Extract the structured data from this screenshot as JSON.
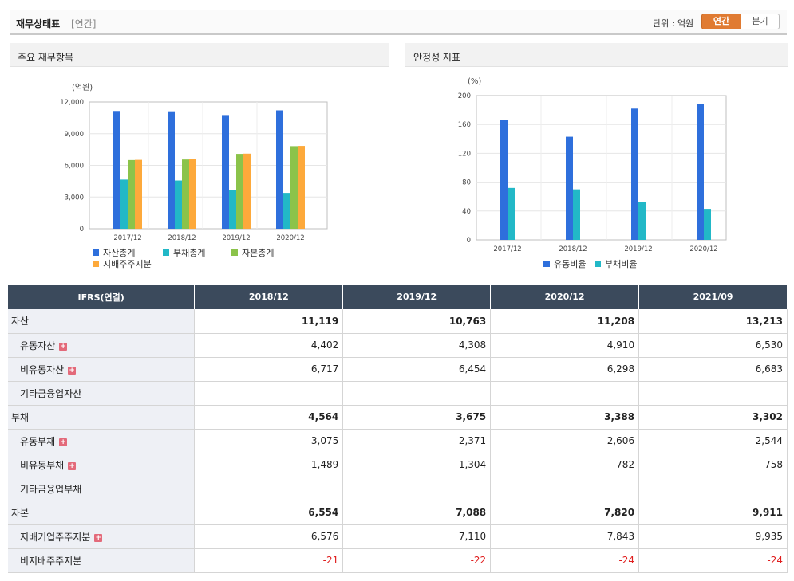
{
  "header": {
    "title": "재무상태표",
    "sub": "[연간]",
    "unit": "단위 : 억원",
    "tab_on": "연간",
    "tab_off": "분기"
  },
  "panels": {
    "left_title": "주요 재무항목",
    "right_title": "안정성 지표"
  },
  "colors": {
    "blue": "#2e6fdc",
    "teal": "#22b8c7",
    "green": "#8bc34a",
    "orange": "#fda93b"
  },
  "chart_data": [
    {
      "type": "bar",
      "ylabel": "(억원)",
      "ylim": [
        0,
        12000
      ],
      "yticks": [
        "12,000",
        "9,000",
        "6,000",
        "3,000",
        "0"
      ],
      "categories": [
        "2017/12",
        "2018/12",
        "2019/12",
        "2020/12"
      ],
      "series": [
        {
          "name": "자산총계",
          "color": "#2e6fdc",
          "values": [
            11150,
            11119,
            10763,
            11208
          ]
        },
        {
          "name": "부채총계",
          "color": "#22b8c7",
          "values": [
            4650,
            4564,
            3675,
            3388
          ]
        },
        {
          "name": "자본총계",
          "color": "#8bc34a",
          "values": [
            6500,
            6554,
            7088,
            7820
          ]
        },
        {
          "name": "지배주주지분",
          "color": "#fda93b",
          "values": [
            6520,
            6576,
            7110,
            7843
          ]
        }
      ],
      "legend": "bottom"
    },
    {
      "type": "bar",
      "ylabel": "(%)",
      "ylim": [
        0,
        200
      ],
      "yticks": [
        "200",
        "160",
        "120",
        "80",
        "40",
        "0"
      ],
      "categories": [
        "2017/12",
        "2018/12",
        "2019/12",
        "2020/12"
      ],
      "series": [
        {
          "name": "유동비율",
          "color": "#2e6fdc",
          "values": [
            166,
            143,
            182,
            188
          ]
        },
        {
          "name": "부채비율",
          "color": "#22b8c7",
          "values": [
            72,
            70,
            52,
            43
          ]
        }
      ],
      "legend": "bottom"
    }
  ],
  "table": {
    "head": [
      "IFRS(연결)",
      "2018/12",
      "2019/12",
      "2020/12",
      "2021/09"
    ],
    "rows": [
      {
        "label": "자산",
        "values": [
          "11,119",
          "10,763",
          "11,208",
          "13,213"
        ],
        "bold": true
      },
      {
        "label": "유동자산",
        "values": [
          "4,402",
          "4,308",
          "4,910",
          "6,530"
        ],
        "sub": true,
        "plus": true
      },
      {
        "label": "비유동자산",
        "values": [
          "6,717",
          "6,454",
          "6,298",
          "6,683"
        ],
        "sub": true,
        "plus": true
      },
      {
        "label": "기타금융업자산",
        "values": [
          "",
          "",
          "",
          ""
        ],
        "sub": true
      },
      {
        "label": "부채",
        "values": [
          "4,564",
          "3,675",
          "3,388",
          "3,302"
        ],
        "bold": true
      },
      {
        "label": "유동부채",
        "values": [
          "3,075",
          "2,371",
          "2,606",
          "2,544"
        ],
        "sub": true,
        "plus": true
      },
      {
        "label": "비유동부채",
        "values": [
          "1,489",
          "1,304",
          "782",
          "758"
        ],
        "sub": true,
        "plus": true
      },
      {
        "label": "기타금융업부채",
        "values": [
          "",
          "",
          "",
          ""
        ],
        "sub": true
      },
      {
        "label": "자본",
        "values": [
          "6,554",
          "7,088",
          "7,820",
          "9,911"
        ],
        "bold": true
      },
      {
        "label": "지배기업주주지분",
        "values": [
          "6,576",
          "7,110",
          "7,843",
          "9,935"
        ],
        "sub": true,
        "plus": true
      },
      {
        "label": "비지배주주지분",
        "values": [
          "-21",
          "-22",
          "-24",
          "-24"
        ],
        "sub": true,
        "neg": true
      }
    ]
  }
}
